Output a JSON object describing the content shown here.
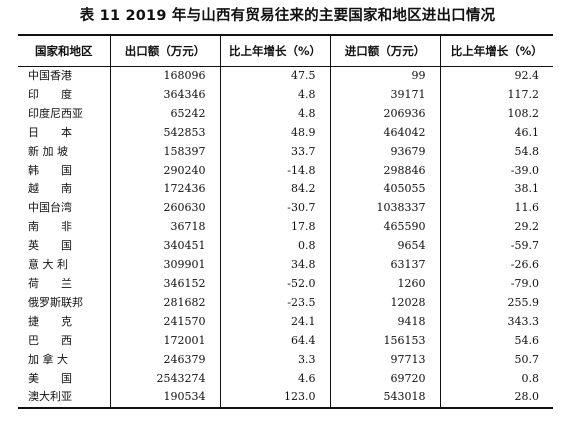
{
  "title": "表 11  2019 年与山西有贸易往来的主要国家和地区进出口情况",
  "headers": [
    "国家和地区",
    "出口额（万元）",
    "比上年增长（%）",
    "进口额（万元）",
    "比上年增长（%）"
  ],
  "rows": [
    [
      "中国香港",
      "168096",
      "47.5",
      "99",
      "92.4"
    ],
    [
      "印　　度",
      "364346",
      "4.8",
      "39171",
      "117.2"
    ],
    [
      "印度尼西亚",
      "65242",
      "4.8",
      "206936",
      "108.2"
    ],
    [
      "日　　本",
      "542853",
      "48.9",
      "464042",
      "46.1"
    ],
    [
      "新 加 坡",
      "158397",
      "33.7",
      "93679",
      "54.8"
    ],
    [
      "韩　　国",
      "290240",
      "-14.8",
      "298846",
      "-39.0"
    ],
    [
      "越　　南",
      "172436",
      "84.2",
      "405055",
      "38.1"
    ],
    [
      "中国台湾",
      "260630",
      "-30.7",
      "1038337",
      "11.6"
    ],
    [
      "南　　非",
      "36718",
      "17.8",
      "465590",
      "29.2"
    ],
    [
      "英　　国",
      "340451",
      "0.8",
      "9654",
      "-59.7"
    ],
    [
      "意 大 利",
      "309901",
      "34.8",
      "63137",
      "-26.6"
    ],
    [
      "荷　　兰",
      "346152",
      "-52.0",
      "1260",
      "-79.0"
    ],
    [
      "俄罗斯联邦",
      "281682",
      "-23.5",
      "12028",
      "255.9"
    ],
    [
      "捷　　克",
      "241570",
      "24.1",
      "9418",
      "343.3"
    ],
    [
      "巴　　西",
      "172001",
      "64.4",
      "156153",
      "54.6"
    ],
    [
      "加 拿 大",
      "246379",
      "3.3",
      "97713",
      "50.7"
    ],
    [
      "美　　国",
      "2543274",
      "4.6",
      "69720",
      "0.8"
    ],
    [
      "澳大利亚",
      "190534",
      "123.0",
      "543018",
      "28.0"
    ]
  ]
}
